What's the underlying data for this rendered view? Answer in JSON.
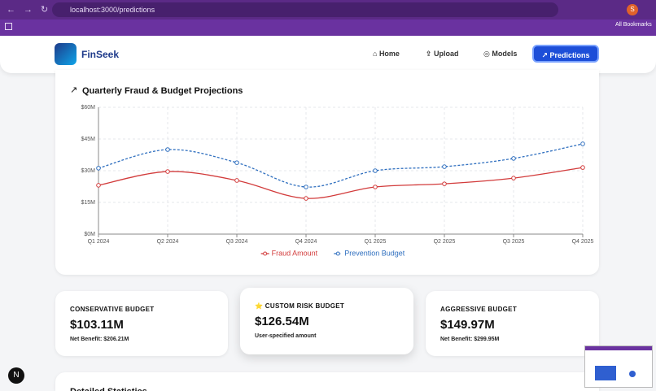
{
  "browser": {
    "url": "localhost:3000/predictions",
    "bookmarks": "All Bookmarks",
    "avatar": "S"
  },
  "nav": {
    "brand": "FinSeek",
    "items": [
      "Home",
      "Upload",
      "Models",
      "Predictions"
    ]
  },
  "chart_data": {
    "type": "line",
    "title": "Quarterly Fraud & Budget Projections",
    "categories": [
      "Q1 2024",
      "Q2 2024",
      "Q3 2024",
      "Q4 2024",
      "Q1 2025",
      "Q2 2025",
      "Q3 2025",
      "Q4 2025"
    ],
    "series": [
      {
        "name": "Fraud Amount",
        "color": "#d23b3b",
        "line_style": "solid",
        "values": [
          23.1,
          29.6,
          25.4,
          16.9,
          22.3,
          23.8,
          26.5,
          31.5
        ]
      },
      {
        "name": "Prevention Budget",
        "color": "#2f6fbf",
        "line_style": "dashed",
        "values": [
          31.2,
          40,
          33.8,
          22.3,
          30,
          31.9,
          35.8,
          42.7
        ]
      }
    ],
    "ylim": [
      0,
      60
    ],
    "yticks": [
      {
        "value": 0,
        "label": "$0M"
      },
      {
        "value": 15,
        "label": "$15M"
      },
      {
        "value": 30,
        "label": "$30M"
      },
      {
        "value": 45,
        "label": "$45M"
      },
      {
        "value": 60,
        "label": "$60M"
      }
    ],
    "grid": true,
    "legend": "bottom"
  },
  "cards": [
    {
      "title": "CONSERVATIVE BUDGET",
      "amount": "$103.11M",
      "note": "Net Benefit: $206.21M"
    },
    {
      "title": "CUSTOM RISK BUDGET",
      "amount": "$126.54M",
      "note": "User-specified amount"
    },
    {
      "title": "AGGRESSIVE BUDGET",
      "amount": "$149.97M",
      "note": "Net Benefit: $299.95M"
    }
  ],
  "section": {
    "title": "Detailed Statistics"
  },
  "badge": "N"
}
